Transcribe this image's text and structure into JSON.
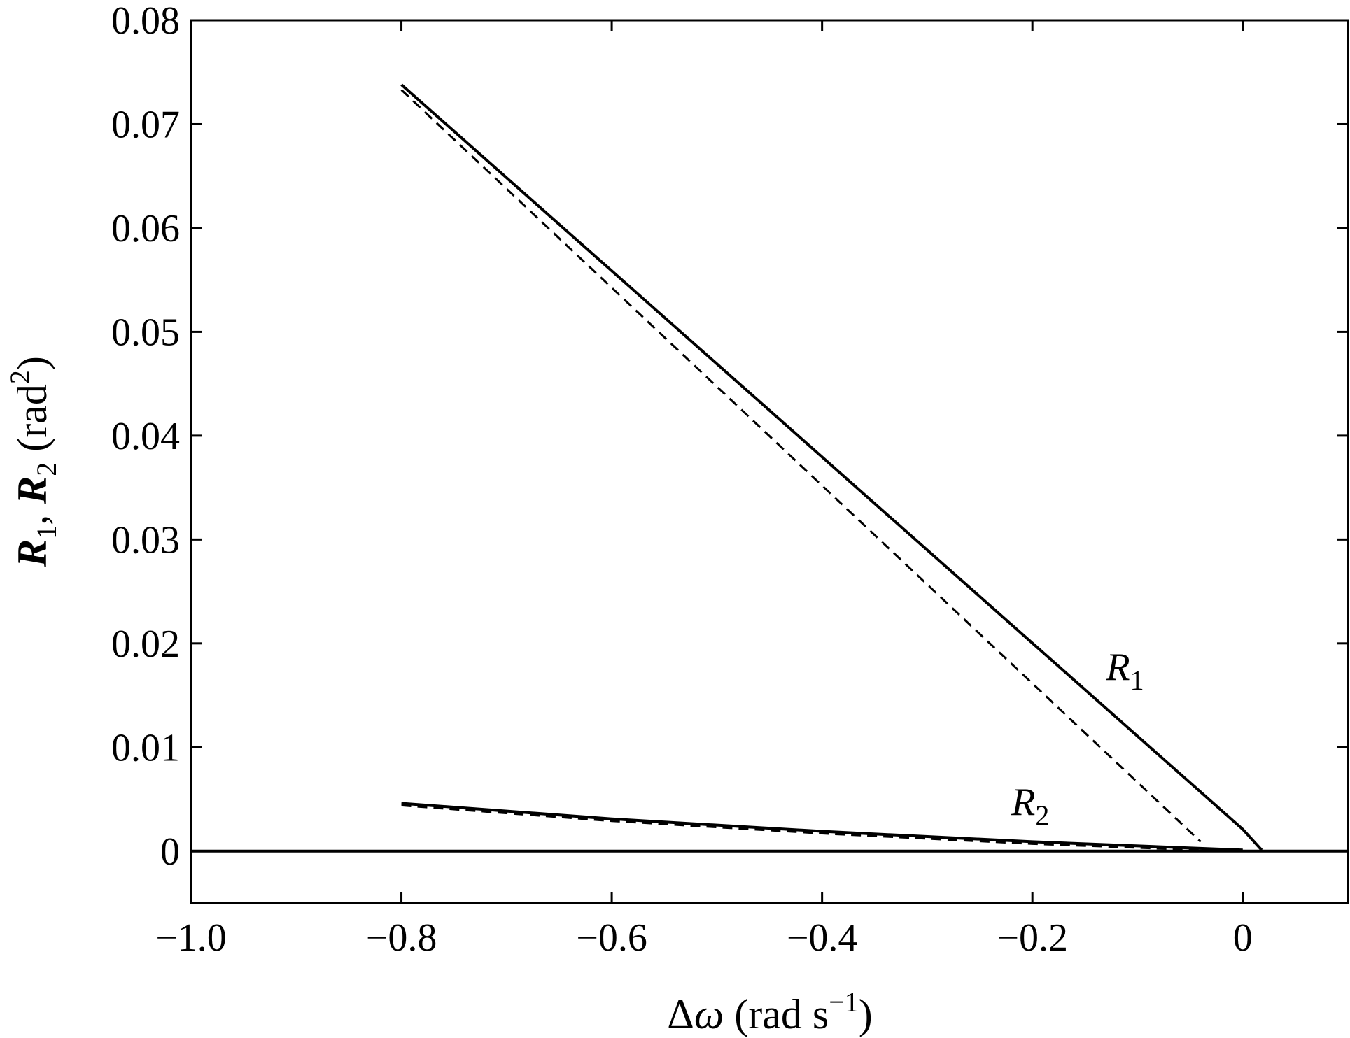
{
  "chart_data": {
    "type": "line",
    "title": "",
    "xlabel": {
      "prefix": "Δ",
      "symbol": "ω",
      "unit_open": " (rad s",
      "unit_sup": "−1",
      "unit_close": ")"
    },
    "ylabel": {
      "r1": "R",
      "r1_sub": "1",
      "sep": ", ",
      "r2": "R",
      "r2_sub": "2",
      "unit_open": " (rad",
      "unit_sup": "2",
      "unit_close": ")"
    },
    "xlim": [
      -1.0,
      0.1
    ],
    "ylim": [
      -0.005,
      0.08
    ],
    "xticks": [
      -1.0,
      -0.8,
      -0.6,
      -0.4,
      -0.2,
      0
    ],
    "xtick_labels": [
      "−1.0",
      "−0.8",
      "−0.6",
      "−0.4",
      "−0.2",
      "0"
    ],
    "yticks": [
      0,
      0.01,
      0.02,
      0.03,
      0.04,
      0.05,
      0.06,
      0.07,
      0.08
    ],
    "ytick_labels": [
      "0",
      "0.01",
      "0.02",
      "0.03",
      "0.04",
      "0.05",
      "0.06",
      "0.07",
      "0.08"
    ],
    "grid": false,
    "zero_line": true,
    "series": [
      {
        "label": "R1 solid",
        "style": "solid",
        "x": [
          -0.8,
          0.0,
          0.018
        ],
        "y": [
          0.0738,
          0.0021,
          0.0001
        ]
      },
      {
        "label": "R1 dashed",
        "style": "dashed",
        "x": [
          -0.8,
          -0.04
        ],
        "y": [
          0.0733,
          0.0009
        ]
      },
      {
        "label": "R2 solid",
        "style": "solid",
        "x": [
          -0.8,
          -0.6,
          -0.4,
          -0.2,
          0.0
        ],
        "y": [
          0.0046,
          0.0031,
          0.0019,
          0.0009,
          0.0001
        ]
      },
      {
        "label": "R2 dashed",
        "style": "dashed",
        "x": [
          -0.8,
          -0.6,
          -0.4,
          -0.2,
          -0.04
        ],
        "y": [
          0.0044,
          0.0029,
          0.0017,
          0.0007,
          0.0001
        ]
      }
    ],
    "annotations": [
      {
        "key": "r1",
        "text": "R",
        "sub": "1",
        "x": -0.13,
        "y": 0.0165
      },
      {
        "key": "r2",
        "text": "R",
        "sub": "2",
        "x": -0.22,
        "y": 0.0035
      }
    ]
  }
}
